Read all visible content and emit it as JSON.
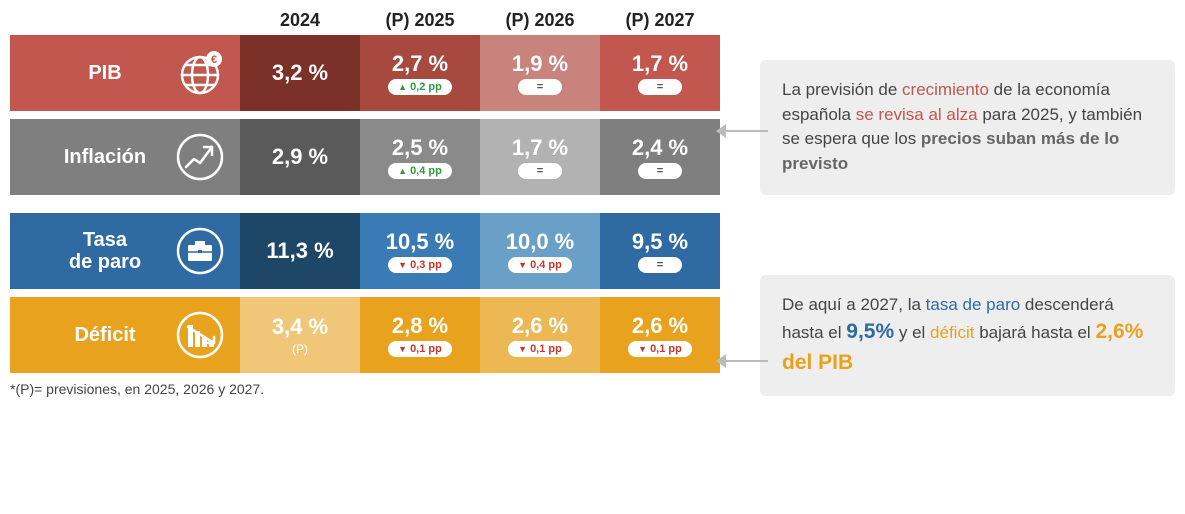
{
  "headers": [
    "2024",
    "(P) 2025",
    "(P) 2026",
    "(P) 2027"
  ],
  "rows": [
    {
      "id": "pib",
      "label": "PIB",
      "icon": "globe-euro",
      "label_bg": "#c1574e",
      "cells": [
        {
          "bg": "#7b3028",
          "value": "3,2 %",
          "indicator": null,
          "sub": null
        },
        {
          "bg": "#a84940",
          "value": "2,7 %",
          "indicator": "up",
          "delta": "0,2 pp",
          "sub": null
        },
        {
          "bg": "#c7837c",
          "value": "1,9 %",
          "indicator": "eq",
          "sub": null
        },
        {
          "bg": "#c1574e",
          "value": "1,7 %",
          "indicator": "eq",
          "sub": null
        }
      ]
    },
    {
      "id": "inflacion",
      "label": "Inflación",
      "icon": "trend-up",
      "label_bg": "#7f7f7f",
      "cells": [
        {
          "bg": "#5a5a5a",
          "value": "2,9 %",
          "indicator": null,
          "sub": null
        },
        {
          "bg": "#8a8a8a",
          "value": "2,5 %",
          "indicator": "up",
          "delta": "0,4 pp",
          "sub": null
        },
        {
          "bg": "#b2b2b2",
          "value": "1,7 %",
          "indicator": "eq",
          "sub": null
        },
        {
          "bg": "#7f7f7f",
          "value": "2,4 %",
          "indicator": "eq",
          "sub": null
        }
      ]
    },
    {
      "id": "paro",
      "label": "Tasa\nde paro",
      "icon": "briefcase",
      "label_bg": "#2f6aa3",
      "cells": [
        {
          "bg": "#1e4666",
          "value": "11,3 %",
          "indicator": null,
          "sub": null
        },
        {
          "bg": "#3a7ab5",
          "value": "10,5 %",
          "indicator": "down",
          "delta": "0,3 pp",
          "sub": null
        },
        {
          "bg": "#6a9fc8",
          "value": "10,0 %",
          "indicator": "down",
          "delta": "0,4 pp",
          "sub": null
        },
        {
          "bg": "#2f6aa3",
          "value": "9,5 %",
          "indicator": "eq",
          "sub": null
        }
      ]
    },
    {
      "id": "deficit",
      "label": "Déficit",
      "icon": "bars-down",
      "label_bg": "#e9a21e",
      "cells": [
        {
          "bg": "#f0c778",
          "value": "3,4 %",
          "indicator": null,
          "sub": "(P)"
        },
        {
          "bg": "#e9a21e",
          "value": "2,8 %",
          "indicator": "down",
          "delta": "0,1 pp",
          "sub": null
        },
        {
          "bg": "#edb854",
          "value": "2,6 %",
          "indicator": "down",
          "delta": "0,1 pp",
          "sub": null
        },
        {
          "bg": "#e9a21e",
          "value": "2,6 %",
          "indicator": "down",
          "delta": "0,1 pp",
          "sub": null
        }
      ]
    }
  ],
  "callouts": [
    {
      "segments": [
        {
          "text": "La previsión de "
        },
        {
          "text": "crecimiento",
          "color": "#c1574e",
          "bold": false
        },
        {
          "text": " de la economía española "
        },
        {
          "text": "se revisa al alza",
          "color": "#c1574e",
          "bold": false
        },
        {
          "text": " para 2025, y también se espera que los "
        },
        {
          "text": "precios suban más de lo previsto",
          "color": "#666666",
          "bold": true
        }
      ]
    },
    {
      "segments": [
        {
          "text": "De aquí a 2027, la "
        },
        {
          "text": "tasa de paro",
          "color": "#2f6aa3",
          "bold": false
        },
        {
          "text": " descenderá hasta el "
        },
        {
          "text": "9,5%",
          "color": "#2f6aa3",
          "bold": true,
          "big": true
        },
        {
          "text": " y el "
        },
        {
          "text": "déficit",
          "color": "#e9a21e",
          "bold": false
        },
        {
          "text": " bajará hasta el "
        },
        {
          "text": "2,6% del PIB",
          "color": "#e9a21e",
          "bold": true,
          "big": true
        }
      ]
    }
  ],
  "footnote": "*(P)= previsiones, en 2025, 2026 y 2027.",
  "colors": {
    "pill_up": "#2e9b3f",
    "pill_down": "#c0392b",
    "callout_bg": "#eeeeee",
    "arrow": "#bbbbbb"
  }
}
